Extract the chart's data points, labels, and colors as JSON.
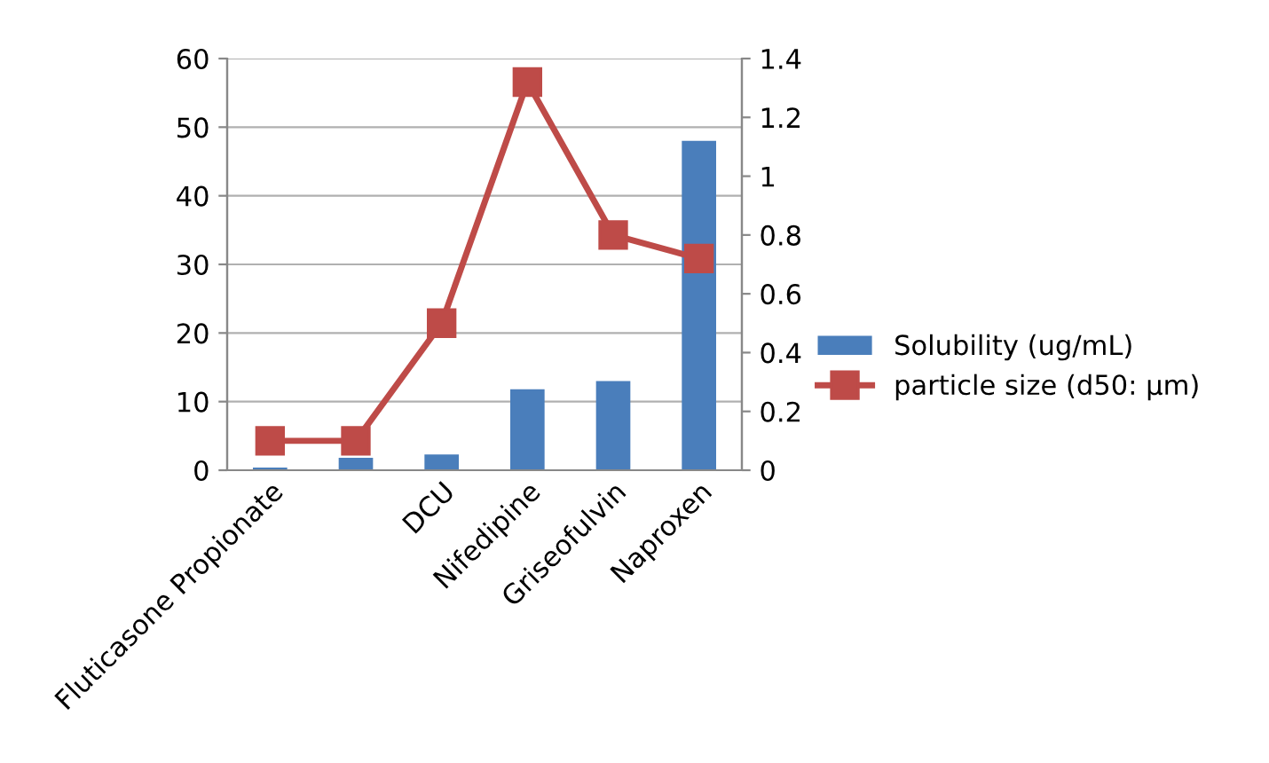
{
  "chart_data": {
    "type": "bar",
    "categories": [
      "Fluticasone Propionate",
      null,
      "DCU",
      "Nifedipine",
      "Griseofulvin",
      "Naproxen"
    ],
    "series": [
      {
        "name": "Solubility (ug/mL)",
        "color": "#4a7ebb",
        "values": [
          0.4,
          1.8,
          2.3,
          11.8,
          13,
          48
        ]
      },
      {
        "name": "particle size (d50: µm)",
        "color": "#be4b48",
        "type": "line",
        "axis": "y2",
        "marker": "square",
        "values": [
          0.1,
          0.1,
          0.5,
          1.32,
          0.8,
          0.72
        ]
      }
    ],
    "ylim": [
      0,
      60
    ],
    "yticks": [
      0,
      10,
      20,
      30,
      40,
      50,
      60
    ],
    "y2lim": [
      0,
      1.4
    ],
    "y2ticks": [
      0,
      0.2,
      0.4,
      0.6,
      0.8,
      1,
      1.2,
      1.4
    ],
    "grid": "y",
    "legend": "right"
  }
}
